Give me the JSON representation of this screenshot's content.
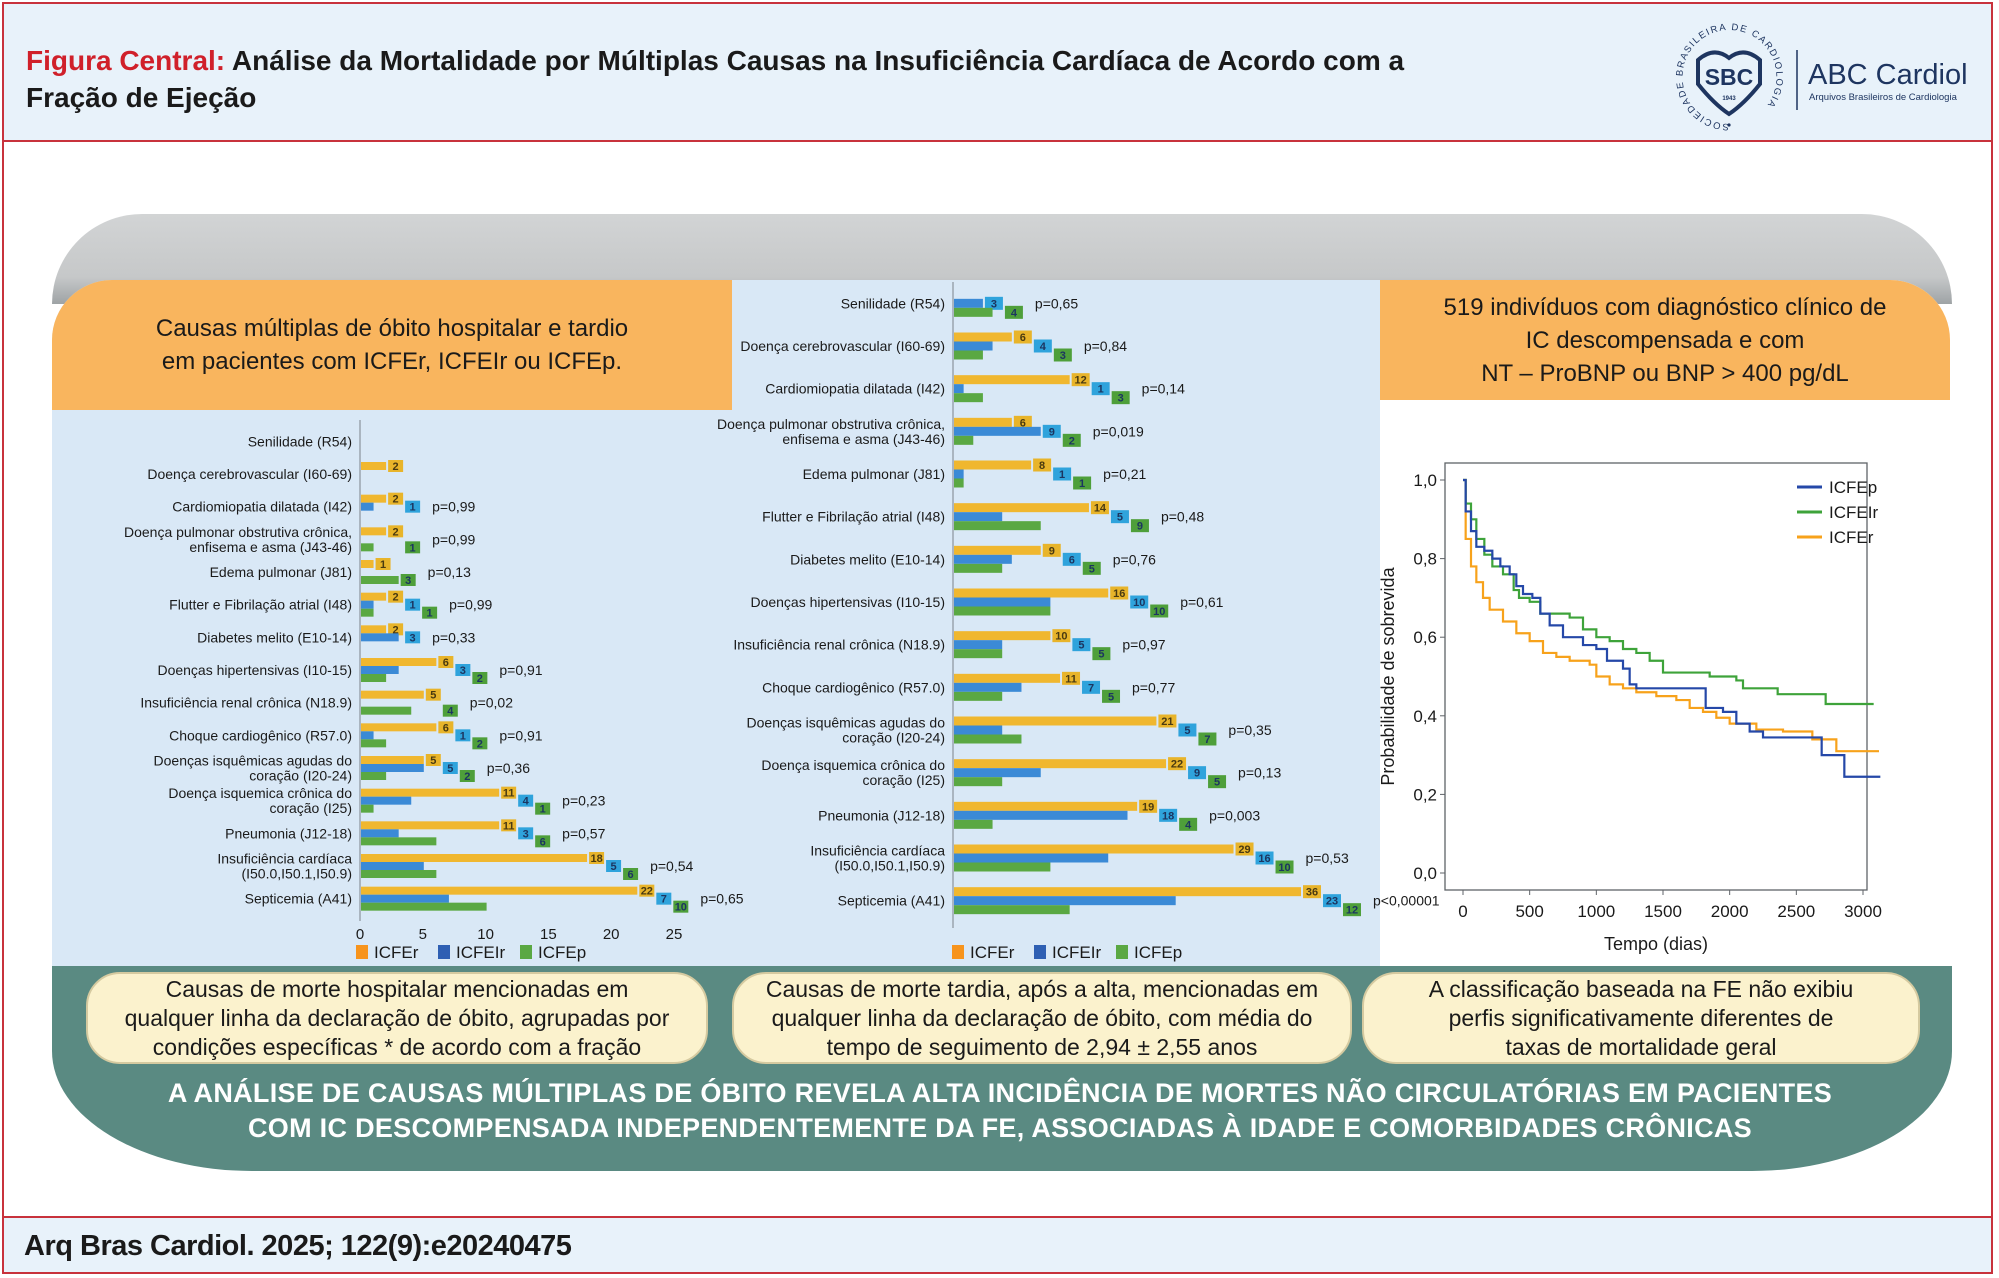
{
  "header": {
    "title_prefix": "Figura Central:",
    "title_line1": "Análise da Mortalidade por Múltiplas Causas na Insuficiência Cardíaca de Acordo com a",
    "title_line2": "Fração de Ejeção",
    "logo": {
      "ring_text": "SOCIEDADE BRASILEIRA DE CARDIOLOGIA",
      "mark": "SBC",
      "year": "1943",
      "brand": "ABC Cardiol",
      "brand_sub": "Arquivos Brasileiros de Cardiologia"
    }
  },
  "left_panel": {
    "heading_line1": "Causas múltiplas de óbito hospitalar e tardio",
    "heading_line2": "em pacientes com ICFEr, ICFEIr ou ICFEp."
  },
  "right_panel": {
    "heading_line1": "519 indivíduos com diagnóstico clínico de",
    "heading_line2": "IC descompensada e com",
    "heading_line3": "NT – ProBNP ou BNP > 400 pg/dL"
  },
  "callouts": [
    {
      "line1": "Causas de morte hospitalar mencionadas em",
      "line2": "qualquer linha da declaração de óbito, agrupadas por",
      "line3": "condições específicas * de acordo com a fração"
    },
    {
      "line1": "Causas de morte tardia, após a alta, mencionadas em",
      "line2": "qualquer linha da declaração de óbito, com média do",
      "line3": "tempo de seguimento de 2,94 ± 2,55 anos"
    },
    {
      "line1": "A classificação baseada na FE não exibiu",
      "line2": "perfis significativamente diferentes de",
      "line3": "taxas de mortalidade geral"
    }
  ],
  "banner": {
    "line1": "A ANÁLISE DE CAUSAS MÚLTIPLAS DE ÓBITO REVELA ALTA INCIDÊNCIA DE MORTES NÃO CIRCULATÓRIAS EM PACIENTES",
    "line2": "COM IC DESCOMPENSADA INDEPENDENTEMENTE DA FE, ASSOCIADAS À IDADE E COMORBIDADES CRÔNICAS"
  },
  "footer": {
    "citation": "Arq Bras Cardiol. 2025; 122(9):e20240475"
  },
  "colors": {
    "ICFEr": "#f0b72f",
    "ICFEIr": "#3b8ad6",
    "ICFEp": "#5aa843",
    "ICFEr_legend": "#f7941d",
    "ICFEIr_legend": "#2e5fb3",
    "km_ICFEp": "#2548a8",
    "km_ICFEIr": "#3ea33a",
    "km_ICFEr": "#f7a21b",
    "title_red": "#d0202a",
    "teal": "#5a8a82"
  },
  "chart_data": [
    {
      "type": "bar",
      "orientation": "horizontal",
      "title": "Causas de morte hospitalar",
      "categories": [
        "Senilidade (R54)",
        "Doença cerebrovascular (I60-69)",
        "Cardiomiopatia dilatada (I42)",
        "Doença pulmonar obstrutiva crônica,|enfisema e asma (J43-46)",
        "Edema pulmonar (J81)",
        "Flutter e Fibrilação atrial (I48)",
        "Diabetes melito (E10-14)",
        "Doenças hipertensivas (I10-15)",
        "Insuficiência renal crônica (N18.9)",
        "Choque cardiogênico (R57.0)",
        "Doenças isquêmicas agudas do|coração (I20-24)",
        "Doença isquemica crônica do|coração (I25)",
        "Pneumonia (J12-18)",
        "Insuficiência cardíaca|(I50.0,I50.1,I50.9)",
        "Septicemia (A41)"
      ],
      "series": [
        {
          "name": "ICFEr",
          "values": [
            0,
            2,
            2,
            2,
            1,
            2,
            2,
            6,
            5,
            6,
            5,
            11,
            11,
            18,
            22
          ]
        },
        {
          "name": "ICFEIr",
          "values": [
            0,
            0,
            1,
            0,
            0,
            1,
            3,
            3,
            0,
            1,
            5,
            4,
            3,
            5,
            7
          ]
        },
        {
          "name": "ICFEp",
          "values": [
            0,
            0,
            0,
            1,
            3,
            1,
            0,
            2,
            4,
            2,
            2,
            1,
            6,
            6,
            10
          ]
        }
      ],
      "p_values": [
        "",
        "",
        "p=0,99",
        "p=0,99",
        "p=0,13",
        "p=0,99",
        "p=0,33",
        "p=0,91",
        "p=0,02",
        "p=0,91",
        "p=0,36",
        "p=0,23",
        "p=0,57",
        "p=0,54",
        "p=0,65"
      ],
      "xlim": [
        0,
        25
      ],
      "xticks": [
        "0",
        "5",
        "10",
        "15",
        "20",
        "25"
      ],
      "legend": [
        "ICFEr",
        "ICFEIr",
        "ICFEp"
      ],
      "legend_position": "bottom"
    },
    {
      "type": "bar",
      "orientation": "horizontal",
      "title": "Causas de morte tardia",
      "categories": [
        "Senilidade (R54)",
        "Doença cerebrovascular (I60-69)",
        "Cardiomiopatia dilatada (I42)",
        "Doença pulmonar obstrutiva crônica,|enfisema e asma (J43-46)",
        "Edema pulmonar (J81)",
        "Flutter e Fibrilação atrial (I48)",
        "Diabetes melito (E10-14)",
        "Doenças hipertensivas (I10-15)",
        "Insuficiência renal crônica (N18.9)",
        "Choque cardiogênico (R57.0)",
        "Doenças isquêmicas agudas do|coração (I20-24)",
        "Doença isquemica crônica do|coração (I25)",
        "Pneumonia (J12-18)",
        "Insuficiência cardíaca|(I50.0,I50.1,I50.9)",
        "Septicemia (A41)"
      ],
      "series": [
        {
          "name": "ICFEr",
          "values": [
            0,
            6,
            12,
            6,
            8,
            14,
            9,
            16,
            10,
            11,
            21,
            22,
            19,
            29,
            36
          ]
        },
        {
          "name": "ICFEIr",
          "values": [
            3,
            4,
            1,
            9,
            1,
            5,
            6,
            10,
            5,
            7,
            5,
            9,
            18,
            16,
            23
          ]
        },
        {
          "name": "ICFEp",
          "values": [
            4,
            3,
            3,
            2,
            1,
            9,
            5,
            10,
            5,
            5,
            7,
            5,
            4,
            10,
            12
          ]
        }
      ],
      "p_values": [
        "p=0,65",
        "p=0,84",
        "p=0,14",
        "p=0,019",
        "p=0,21",
        "p=0,48",
        "p=0,76",
        "p=0,61",
        "p=0,97",
        "p=0,77",
        "p=0,35",
        "p=0,13",
        "p=0,003",
        "p=0,53",
        "p<0,00001"
      ],
      "xlim": [
        0,
        36
      ],
      "legend": [
        "ICFEr",
        "ICFEIr",
        "ICFEp"
      ],
      "legend_position": "bottom"
    },
    {
      "type": "line",
      "subtype": "kaplan-meier",
      "xlabel": "Tempo (dias)",
      "ylabel": "Probabilidade de sobrevida",
      "xlim": [
        0,
        3200
      ],
      "ylim": [
        0,
        1.0
      ],
      "xticks": [
        "0",
        "500",
        "1000",
        "1500",
        "2000",
        "2500",
        "3000"
      ],
      "yticks": [
        "0,0",
        "0,2",
        "0,4",
        "0,6",
        "0,8",
        "1,0"
      ],
      "legend": [
        "ICFEp",
        "ICFEIr",
        "ICFEr"
      ],
      "legend_position": "top-right",
      "series": [
        {
          "name": "ICFEp",
          "points": [
            [
              0,
              1.0
            ],
            [
              20,
              0.92
            ],
            [
              60,
              0.87
            ],
            [
              100,
              0.83
            ],
            [
              160,
              0.82
            ],
            [
              220,
              0.8
            ],
            [
              280,
              0.78
            ],
            [
              350,
              0.76
            ],
            [
              400,
              0.73
            ],
            [
              450,
              0.71
            ],
            [
              520,
              0.7
            ],
            [
              580,
              0.66
            ],
            [
              650,
              0.63
            ],
            [
              750,
              0.6
            ],
            [
              900,
              0.58
            ],
            [
              1000,
              0.57
            ],
            [
              1080,
              0.54
            ],
            [
              1200,
              0.52
            ],
            [
              1250,
              0.48
            ],
            [
              1300,
              0.47
            ],
            [
              1500,
              0.47
            ],
            [
              1780,
              0.47
            ],
            [
              1820,
              0.42
            ],
            [
              1950,
              0.41
            ],
            [
              2050,
              0.38
            ],
            [
              2150,
              0.36
            ],
            [
              2250,
              0.345
            ],
            [
              2500,
              0.345
            ],
            [
              2680,
              0.345
            ],
            [
              2690,
              0.3
            ],
            [
              2850,
              0.3
            ],
            [
              2860,
              0.245
            ],
            [
              3130,
              0.245
            ]
          ]
        },
        {
          "name": "ICFEIr",
          "points": [
            [
              0,
              1.0
            ],
            [
              20,
              0.94
            ],
            [
              60,
              0.9
            ],
            [
              100,
              0.85
            ],
            [
              160,
              0.81
            ],
            [
              220,
              0.78
            ],
            [
              300,
              0.76
            ],
            [
              380,
              0.72
            ],
            [
              420,
              0.7
            ],
            [
              500,
              0.69
            ],
            [
              580,
              0.66
            ],
            [
              700,
              0.66
            ],
            [
              800,
              0.65
            ],
            [
              900,
              0.62
            ],
            [
              1000,
              0.6
            ],
            [
              1100,
              0.59
            ],
            [
              1200,
              0.57
            ],
            [
              1300,
              0.56
            ],
            [
              1400,
              0.54
            ],
            [
              1500,
              0.51
            ],
            [
              1800,
              0.51
            ],
            [
              1850,
              0.5
            ],
            [
              2050,
              0.49
            ],
            [
              2100,
              0.47
            ],
            [
              2350,
              0.47
            ],
            [
              2360,
              0.455
            ],
            [
              2700,
              0.455
            ],
            [
              2720,
              0.43
            ],
            [
              3080,
              0.43
            ]
          ]
        },
        {
          "name": "ICFEr",
          "points": [
            [
              0,
              1.0
            ],
            [
              20,
              0.85
            ],
            [
              60,
              0.78
            ],
            [
              100,
              0.74
            ],
            [
              150,
              0.7
            ],
            [
              200,
              0.67
            ],
            [
              300,
              0.64
            ],
            [
              400,
              0.61
            ],
            [
              500,
              0.59
            ],
            [
              600,
              0.56
            ],
            [
              700,
              0.55
            ],
            [
              800,
              0.54
            ],
            [
              950,
              0.53
            ],
            [
              1000,
              0.5
            ],
            [
              1100,
              0.48
            ],
            [
              1200,
              0.47
            ],
            [
              1300,
              0.46
            ],
            [
              1450,
              0.45
            ],
            [
              1600,
              0.44
            ],
            [
              1700,
              0.42
            ],
            [
              1800,
              0.41
            ],
            [
              1900,
              0.395
            ],
            [
              2000,
              0.38
            ],
            [
              2200,
              0.365
            ],
            [
              2400,
              0.36
            ],
            [
              2600,
              0.36
            ],
            [
              2620,
              0.34
            ],
            [
              2800,
              0.31
            ],
            [
              3120,
              0.31
            ]
          ]
        }
      ]
    }
  ]
}
